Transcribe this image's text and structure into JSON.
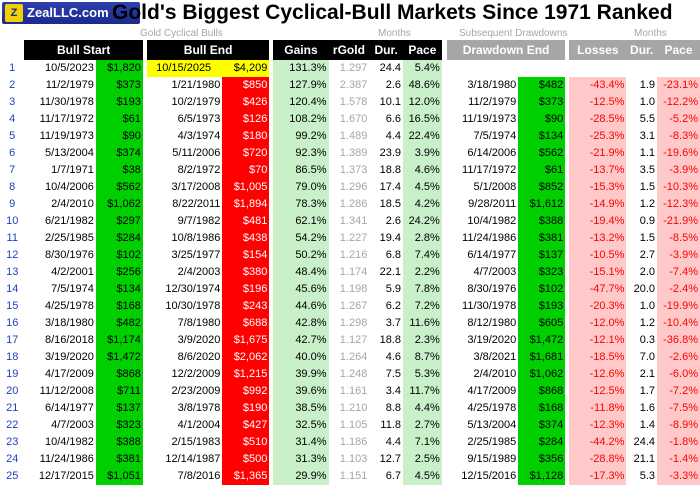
{
  "logo": {
    "text": "ZealLLC.com"
  },
  "title": "Gold's Biggest Cyclical-Bull Markets Since 1971 Ranked",
  "group_headers": {
    "bulls": "Gold Cyclical Bulls",
    "months1": "Months",
    "drawdowns": "Subsequent Drawdowns",
    "months2": "Months"
  },
  "columns": [
    "Bull Start",
    "Bull End",
    "Gains",
    "rGold",
    "Dur.",
    "Pace",
    "Drawdown End",
    "Losses",
    "Dur.",
    "Pace"
  ],
  "colors": {
    "green": "#00d000",
    "red": "#ff0000",
    "yellow": "#ffff00",
    "light_green": "#c9f0c9",
    "pink": "#ffc9c9",
    "rank_blue": "#1f3fc4"
  },
  "rows": [
    {
      "rank": "1",
      "start": "10/5/2023",
      "start_price": "$1,820",
      "end": "10/15/2025",
      "end_price": "$4,209",
      "gains": "131.3%",
      "rgold": "1.297",
      "dur": "24.4",
      "pace": "5.4%",
      "dd_end": "",
      "dd_price": "",
      "losses": "",
      "dd_dur": "",
      "dd_pace": ""
    },
    {
      "rank": "2",
      "start": "11/2/1979",
      "start_price": "$373",
      "end": "1/21/1980",
      "end_price": "$850",
      "gains": "127.9%",
      "rgold": "2.387",
      "dur": "2.6",
      "pace": "48.6%",
      "dd_end": "3/18/1980",
      "dd_price": "$482",
      "losses": "-43.4%",
      "dd_dur": "1.9",
      "dd_pace": "-23.1%"
    },
    {
      "rank": "3",
      "start": "11/30/1978",
      "start_price": "$193",
      "end": "10/2/1979",
      "end_price": "$426",
      "gains": "120.4%",
      "rgold": "1.578",
      "dur": "10.1",
      "pace": "12.0%",
      "dd_end": "11/2/1979",
      "dd_price": "$373",
      "losses": "-12.5%",
      "dd_dur": "1.0",
      "dd_pace": "-12.2%"
    },
    {
      "rank": "4",
      "start": "11/17/1972",
      "start_price": "$61",
      "end": "6/5/1973",
      "end_price": "$126",
      "gains": "108.2%",
      "rgold": "1.670",
      "dur": "6.6",
      "pace": "16.5%",
      "dd_end": "11/19/1973",
      "dd_price": "$90",
      "losses": "-28.5%",
      "dd_dur": "5.5",
      "dd_pace": "-5.2%"
    },
    {
      "rank": "5",
      "start": "11/19/1973",
      "start_price": "$90",
      "end": "4/3/1974",
      "end_price": "$180",
      "gains": "99.2%",
      "rgold": "1.489",
      "dur": "4.4",
      "pace": "22.4%",
      "dd_end": "7/5/1974",
      "dd_price": "$134",
      "losses": "-25.3%",
      "dd_dur": "3.1",
      "dd_pace": "-8.3%"
    },
    {
      "rank": "6",
      "start": "5/13/2004",
      "start_price": "$374",
      "end": "5/11/2006",
      "end_price": "$720",
      "gains": "92.3%",
      "rgold": "1.389",
      "dur": "23.9",
      "pace": "3.9%",
      "dd_end": "6/14/2006",
      "dd_price": "$562",
      "losses": "-21.9%",
      "dd_dur": "1.1",
      "dd_pace": "-19.6%"
    },
    {
      "rank": "7",
      "start": "1/7/1971",
      "start_price": "$38",
      "end": "8/2/1972",
      "end_price": "$70",
      "gains": "86.5%",
      "rgold": "1.373",
      "dur": "18.8",
      "pace": "4.6%",
      "dd_end": "11/17/1972",
      "dd_price": "$61",
      "losses": "-13.7%",
      "dd_dur": "3.5",
      "dd_pace": "-3.9%"
    },
    {
      "rank": "8",
      "start": "10/4/2006",
      "start_price": "$562",
      "end": "3/17/2008",
      "end_price": "$1,005",
      "gains": "79.0%",
      "rgold": "1.296",
      "dur": "17.4",
      "pace": "4.5%",
      "dd_end": "5/1/2008",
      "dd_price": "$852",
      "losses": "-15.3%",
      "dd_dur": "1.5",
      "dd_pace": "-10.3%"
    },
    {
      "rank": "9",
      "start": "2/4/2010",
      "start_price": "$1,062",
      "end": "8/22/2011",
      "end_price": "$1,894",
      "gains": "78.3%",
      "rgold": "1.286",
      "dur": "18.5",
      "pace": "4.2%",
      "dd_end": "9/28/2011",
      "dd_price": "$1,612",
      "losses": "-14.9%",
      "dd_dur": "1.2",
      "dd_pace": "-12.3%"
    },
    {
      "rank": "10",
      "start": "6/21/1982",
      "start_price": "$297",
      "end": "9/7/1982",
      "end_price": "$481",
      "gains": "62.1%",
      "rgold": "1.341",
      "dur": "2.6",
      "pace": "24.2%",
      "dd_end": "10/4/1982",
      "dd_price": "$388",
      "losses": "-19.4%",
      "dd_dur": "0.9",
      "dd_pace": "-21.9%"
    },
    {
      "rank": "11",
      "start": "2/25/1985",
      "start_price": "$284",
      "end": "10/8/1986",
      "end_price": "$438",
      "gains": "54.2%",
      "rgold": "1.227",
      "dur": "19.4",
      "pace": "2.8%",
      "dd_end": "11/24/1986",
      "dd_price": "$381",
      "losses": "-13.2%",
      "dd_dur": "1.5",
      "dd_pace": "-8.5%"
    },
    {
      "rank": "12",
      "start": "8/30/1976",
      "start_price": "$102",
      "end": "3/25/1977",
      "end_price": "$154",
      "gains": "50.2%",
      "rgold": "1.216",
      "dur": "6.8",
      "pace": "7.4%",
      "dd_end": "6/14/1977",
      "dd_price": "$137",
      "losses": "-10.5%",
      "dd_dur": "2.7",
      "dd_pace": "-3.9%"
    },
    {
      "rank": "13",
      "start": "4/2/2001",
      "start_price": "$256",
      "end": "2/4/2003",
      "end_price": "$380",
      "gains": "48.4%",
      "rgold": "1.174",
      "dur": "22.1",
      "pace": "2.2%",
      "dd_end": "4/7/2003",
      "dd_price": "$323",
      "losses": "-15.1%",
      "dd_dur": "2.0",
      "dd_pace": "-7.4%"
    },
    {
      "rank": "14",
      "start": "7/5/1974",
      "start_price": "$134",
      "end": "12/30/1974",
      "end_price": "$196",
      "gains": "45.6%",
      "rgold": "1.198",
      "dur": "5.9",
      "pace": "7.8%",
      "dd_end": "8/30/1976",
      "dd_price": "$102",
      "losses": "-47.7%",
      "dd_dur": "20.0",
      "dd_pace": "-2.4%"
    },
    {
      "rank": "15",
      "start": "4/25/1978",
      "start_price": "$168",
      "end": "10/30/1978",
      "end_price": "$243",
      "gains": "44.6%",
      "rgold": "1.267",
      "dur": "6.2",
      "pace": "7.2%",
      "dd_end": "11/30/1978",
      "dd_price": "$193",
      "losses": "-20.3%",
      "dd_dur": "1.0",
      "dd_pace": "-19.9%"
    },
    {
      "rank": "16",
      "start": "3/18/1980",
      "start_price": "$482",
      "end": "7/8/1980",
      "end_price": "$688",
      "gains": "42.8%",
      "rgold": "1.298",
      "dur": "3.7",
      "pace": "11.6%",
      "dd_end": "8/12/1980",
      "dd_price": "$605",
      "losses": "-12.0%",
      "dd_dur": "1.2",
      "dd_pace": "-10.4%"
    },
    {
      "rank": "17",
      "start": "8/16/2018",
      "start_price": "$1,174",
      "end": "3/9/2020",
      "end_price": "$1,675",
      "gains": "42.7%",
      "rgold": "1.127",
      "dur": "18.8",
      "pace": "2.3%",
      "dd_end": "3/19/2020",
      "dd_price": "$1,472",
      "losses": "-12.1%",
      "dd_dur": "0.3",
      "dd_pace": "-36.8%"
    },
    {
      "rank": "18",
      "start": "3/19/2020",
      "start_price": "$1,472",
      "end": "8/6/2020",
      "end_price": "$2,062",
      "gains": "40.0%",
      "rgold": "1.264",
      "dur": "4.6",
      "pace": "8.7%",
      "dd_end": "3/8/2021",
      "dd_price": "$1,681",
      "losses": "-18.5%",
      "dd_dur": "7.0",
      "dd_pace": "-2.6%"
    },
    {
      "rank": "19",
      "start": "4/17/2009",
      "start_price": "$868",
      "end": "12/2/2009",
      "end_price": "$1,215",
      "gains": "39.9%",
      "rgold": "1.248",
      "dur": "7.5",
      "pace": "5.3%",
      "dd_end": "2/4/2010",
      "dd_price": "$1,062",
      "losses": "-12.6%",
      "dd_dur": "2.1",
      "dd_pace": "-6.0%"
    },
    {
      "rank": "20",
      "start": "11/12/2008",
      "start_price": "$711",
      "end": "2/23/2009",
      "end_price": "$992",
      "gains": "39.6%",
      "rgold": "1.161",
      "dur": "3.4",
      "pace": "11.7%",
      "dd_end": "4/17/2009",
      "dd_price": "$868",
      "losses": "-12.5%",
      "dd_dur": "1.7",
      "dd_pace": "-7.2%"
    },
    {
      "rank": "21",
      "start": "6/14/1977",
      "start_price": "$137",
      "end": "3/8/1978",
      "end_price": "$190",
      "gains": "38.5%",
      "rgold": "1.210",
      "dur": "8.8",
      "pace": "4.4%",
      "dd_end": "4/25/1978",
      "dd_price": "$168",
      "losses": "-11.8%",
      "dd_dur": "1.6",
      "dd_pace": "-7.5%"
    },
    {
      "rank": "22",
      "start": "4/7/2003",
      "start_price": "$323",
      "end": "4/1/2004",
      "end_price": "$427",
      "gains": "32.5%",
      "rgold": "1.105",
      "dur": "11.8",
      "pace": "2.7%",
      "dd_end": "5/13/2004",
      "dd_price": "$374",
      "losses": "-12.3%",
      "dd_dur": "1.4",
      "dd_pace": "-8.9%"
    },
    {
      "rank": "23",
      "start": "10/4/1982",
      "start_price": "$388",
      "end": "2/15/1983",
      "end_price": "$510",
      "gains": "31.4%",
      "rgold": "1.186",
      "dur": "4.4",
      "pace": "7.1%",
      "dd_end": "2/25/1985",
      "dd_price": "$284",
      "losses": "-44.2%",
      "dd_dur": "24.4",
      "dd_pace": "-1.8%"
    },
    {
      "rank": "24",
      "start": "11/24/1986",
      "start_price": "$381",
      "end": "12/14/1987",
      "end_price": "$500",
      "gains": "31.3%",
      "rgold": "1.103",
      "dur": "12.7",
      "pace": "2.5%",
      "dd_end": "9/15/1989",
      "dd_price": "$356",
      "losses": "-28.8%",
      "dd_dur": "21.1",
      "dd_pace": "-1.4%"
    },
    {
      "rank": "25",
      "start": "12/17/2015",
      "start_price": "$1,051",
      "end": "7/8/2016",
      "end_price": "$1,365",
      "gains": "29.9%",
      "rgold": "1.151",
      "dur": "6.7",
      "pace": "4.5%",
      "dd_end": "12/15/2016",
      "dd_price": "$1,128",
      "losses": "-17.3%",
      "dd_dur": "5.3",
      "dd_pace": "-3.3%"
    }
  ]
}
